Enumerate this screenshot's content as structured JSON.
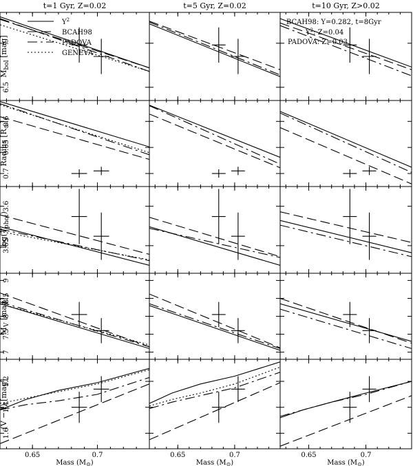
{
  "chart_data": {
    "type": "line",
    "x_axis": {
      "label": "Mass (M",
      "label_sub": "⊙",
      "label_tail": ")",
      "range": [
        0.625,
        0.74
      ],
      "ticks": [
        0.65,
        0.7
      ],
      "tick_labels": [
        "0.65",
        "0.7"
      ]
    },
    "legend": {
      "entries": [
        {
          "name": "Y",
          "sup": "2",
          "style": "solid"
        },
        {
          "name": "BCAH98",
          "sup": "",
          "style": "dashed"
        },
        {
          "name": "PADOVA",
          "sup": "",
          "style": "dashdot"
        },
        {
          "name": "GENEVA",
          "sup": "",
          "style": "dotted"
        }
      ]
    },
    "model_notes": [
      {
        "text": "BCAH98: Y=0.282, t=8Gyr",
        "sup": ""
      },
      {
        "text": "Y",
        "sup": "2",
        "tail": ": Z=0.04"
      },
      {
        "text": "PADOVA: Z=0.03",
        "sup": ""
      }
    ],
    "columns": [
      {
        "title": "t=1 Gyr, Z=0.02"
      },
      {
        "title": "t=5 Gyr, Z=0.02"
      },
      {
        "title": "t=10 Gyr, Z>0.02"
      }
    ],
    "rows": [
      {
        "key": "mbol",
        "ylabel": "M",
        "ylabel_sub": "bol",
        "ylabel_tail": " [mag]",
        "ylim": [
          7.35,
          6.35
        ],
        "ticks": [
          6.5,
          7
        ],
        "tick_labels": [
          "6.5",
          "7"
        ],
        "observations": [
          {
            "x": 0.686,
            "y": 6.98,
            "xerr": 0.006,
            "yerr": 0.2
          },
          {
            "x": 0.703,
            "y": 6.85,
            "xerr": 0.006,
            "yerr": 0.2
          }
        ],
        "panels": [
          {
            "series": [
              {
                "model": "Y2",
                "x": [
                  0.625,
                  0.74
                ],
                "y": [
                  7.3,
                  6.72
                ]
              },
              {
                "model": "BCAH98",
                "x": [
                  0.625,
                  0.74
                ],
                "y": [
                  7.27,
                  6.72
                ]
              },
              {
                "model": "PADOVA",
                "x": [
                  0.625,
                  0.74
                ],
                "y": [
                  7.28,
                  6.68
                ]
              },
              {
                "model": "GENEVA",
                "x": [
                  0.625,
                  0.74
                ],
                "y": [
                  7.21,
                  6.68
                ]
              }
            ]
          },
          {
            "series": [
              {
                "model": "Y2",
                "x": [
                  0.625,
                  0.74
                ],
                "y": [
                  7.22,
                  6.62
                ]
              },
              {
                "model": "BCAH98",
                "x": [
                  0.625,
                  0.74
                ],
                "y": [
                  7.25,
                  6.7
                ]
              },
              {
                "model": "PADOVA",
                "x": [
                  0.625,
                  0.74
                ],
                "y": [
                  7.24,
                  6.64
                ]
              }
            ]
          },
          {
            "series": [
              {
                "model": "Y2",
                "x": [
                  0.625,
                  0.74
                ],
                "y": [
                  7.28,
                  6.73
                ]
              },
              {
                "model": "BCAH98",
                "x": [
                  0.625,
                  0.74
                ],
                "y": [
                  7.23,
                  6.7
                ]
              },
              {
                "model": "PADOVA",
                "x": [
                  0.625,
                  0.74
                ],
                "y": [
                  7.2,
                  6.63
                ]
              }
            ]
          }
        ]
      },
      {
        "key": "radius",
        "ylabel": "Radius [R",
        "ylabel_sub": "⊙",
        "ylabel_tail": "]",
        "ylim": [
          0.56,
          0.725
        ],
        "ticks": [
          0.6,
          0.65,
          0.7
        ],
        "tick_labels": [
          "0.6",
          "0.65",
          "0.7"
        ],
        "observations": [
          {
            "x": 0.686,
            "y": 0.7,
            "xerr": 0.006,
            "yerr": 0.008
          },
          {
            "x": 0.703,
            "y": 0.695,
            "xerr": 0.006,
            "yerr": 0.008
          }
        ],
        "panels": [
          {
            "series": [
              {
                "model": "Y2",
                "x": [
                  0.625,
                  0.74
                ],
                "y": [
                  0.562,
                  0.649
                ]
              },
              {
                "model": "BCAH98",
                "x": [
                  0.625,
                  0.74
                ],
                "y": [
                  0.591,
                  0.673
                ]
              },
              {
                "model": "PADOVA",
                "x": [
                  0.625,
                  0.74
                ],
                "y": [
                  0.566,
                  0.664
                ]
              },
              {
                "model": "GENEVA",
                "x": [
                  0.625,
                  0.74
                ],
                "y": [
                  0.568,
                  0.66
                ]
              }
            ]
          },
          {
            "series": [
              {
                "model": "Y2",
                "x": [
                  0.625,
                  0.74
                ],
                "y": [
                  0.569,
                  0.669
                ]
              },
              {
                "model": "BCAH98",
                "x": [
                  0.625,
                  0.74
                ],
                "y": [
                  0.586,
                  0.689
                ]
              },
              {
                "model": "PADOVA",
                "x": [
                  0.625,
                  0.74
                ],
                "y": [
                  0.57,
                  0.682
                ]
              }
            ]
          },
          {
            "series": [
              {
                "model": "Y2",
                "x": [
                  0.625,
                  0.74
                ],
                "y": [
                  0.581,
                  0.688
                ]
              },
              {
                "model": "BCAH98",
                "x": [
                  0.625,
                  0.74
                ],
                "y": [
                  0.612,
                  0.72
                ]
              },
              {
                "model": "PADOVA",
                "x": [
                  0.625,
                  0.74
                ],
                "y": [
                  0.584,
                  0.698
                ]
              }
            ]
          }
        ]
      },
      {
        "key": "teff",
        "ylabel": "log(T",
        "ylabel_sub": "phot",
        "ylabel_tail": ")",
        "ylim": [
          3.575,
          3.685
        ],
        "ticks": [
          3.6,
          3.65
        ],
        "tick_labels": [
          "3.6",
          "3.65"
        ],
        "observations": [
          {
            "x": 0.686,
            "y": 3.613,
            "xerr": 0.006,
            "yerr": 0.035
          },
          {
            "x": 0.703,
            "y": 3.638,
            "xerr": 0.006,
            "yerr": 0.03
          }
        ],
        "panels": [
          {
            "series": [
              {
                "model": "Y2",
                "x": [
                  0.625,
                  0.74
                ],
                "y": [
                  3.626,
                  3.675
                ]
              },
              {
                "model": "BCAH98",
                "x": [
                  0.625,
                  0.74
                ],
                "y": [
                  3.611,
                  3.661
                ]
              },
              {
                "model": "PADOVA",
                "x": [
                  0.625,
                  0.74
                ],
                "y": [
                  3.629,
                  3.669
                ]
              },
              {
                "model": "GENEVA",
                "x": [
                  0.625,
                  0.74
                ],
                "y": [
                  3.632,
                  3.668
                ]
              }
            ]
          },
          {
            "series": [
              {
                "model": "Y2",
                "x": [
                  0.625,
                  0.74
                ],
                "y": [
                  3.626,
                  3.675
                ]
              },
              {
                "model": "BCAH98",
                "x": [
                  0.625,
                  0.74
                ],
                "y": [
                  3.614,
                  3.664
                ]
              },
              {
                "model": "PADOVA",
                "x": [
                  0.625,
                  0.74
                ],
                "y": [
                  3.628,
                  3.665
                ]
              }
            ]
          },
          {
            "series": [
              {
                "model": "Y2",
                "x": [
                  0.625,
                  0.74
                ],
                "y": [
                  3.618,
                  3.659
                ]
              },
              {
                "model": "BCAH98",
                "x": [
                  0.625,
                  0.74
                ],
                "y": [
                  3.607,
                  3.646
                ]
              },
              {
                "model": "PADOVA",
                "x": [
                  0.625,
                  0.74
                ],
                "y": [
                  3.624,
                  3.664
                ]
              }
            ]
          }
        ]
      },
      {
        "key": "mv",
        "ylabel": "M",
        "ylabel_sub": "V",
        "ylabel_tail": " [mag]",
        "ylim": [
          9.2,
          6.8
        ],
        "ticks": [
          7,
          7.5,
          8,
          8.5,
          9
        ],
        "tick_labels": [
          "7",
          "7.5",
          "8",
          "8.5",
          "9"
        ],
        "observations": [
          {
            "x": 0.686,
            "y": 8.05,
            "xerr": 0.006,
            "yerr": 0.35
          },
          {
            "x": 0.703,
            "y": 7.6,
            "xerr": 0.006,
            "yerr": 0.35
          }
        ],
        "panels": [
          {
            "series": [
              {
                "model": "Y2",
                "x": [
                  0.625,
                  0.74
                ],
                "y": [
                  8.35,
                  7.1
                ]
              },
              {
                "model": "BCAH98",
                "x": [
                  0.625,
                  0.74
                ],
                "y": [
                  8.65,
                  7.15
                ]
              },
              {
                "model": "PADOVA",
                "x": [
                  0.625,
                  0.74
                ],
                "y": [
                  8.4,
                  7.15
                ]
              },
              {
                "model": "GENEVA",
                "x": [
                  0.625,
                  0.74
                ],
                "y": [
                  8.35,
                  7.2
                ]
              }
            ]
          },
          {
            "series": [
              {
                "model": "Y2",
                "x": [
                  0.625,
                  0.74
                ],
                "y": [
                  8.3,
                  7.05
                ]
              },
              {
                "model": "BCAH98",
                "x": [
                  0.625,
                  0.74
                ],
                "y": [
                  8.62,
                  7.12
                ]
              },
              {
                "model": "PADOVA",
                "x": [
                  0.625,
                  0.74
                ],
                "y": [
                  8.35,
                  7.1
                ]
              }
            ]
          },
          {
            "series": [
              {
                "model": "Y2",
                "x": [
                  0.625,
                  0.74
                ],
                "y": [
                  8.35,
                  7.3
                ]
              },
              {
                "model": "BCAH98",
                "x": [
                  0.625,
                  0.74
                ],
                "y": [
                  8.5,
                  7.25
                ]
              },
              {
                "model": "PADOVA",
                "x": [
                  0.625,
                  0.74
                ],
                "y": [
                  8.2,
                  7.1
                ]
              }
            ]
          }
        ]
      },
      {
        "key": "vi",
        "ylabel": "(V − I) [mag]",
        "ylabel_sub": "",
        "ylabel_tail": "",
        "ylim": [
          1.03,
          1.72
        ],
        "ticks": [
          1.2,
          1.4,
          1.6
        ],
        "tick_labels": [
          "1.2",
          "1.4",
          "1.6"
        ],
        "observations": [
          {
            "x": 0.686,
            "y": 1.4,
            "xerr": 0.006,
            "yerr": 0.12
          },
          {
            "x": 0.703,
            "y": 1.26,
            "xerr": 0.006,
            "yerr": 0.1
          }
        ],
        "panels": [
          {
            "series": [
              {
                "model": "Y2",
                "x": [
                  0.625,
                  0.645,
                  0.67,
                  0.7,
                  0.74
                ],
                "y": [
                  1.42,
                  1.34,
                  1.27,
                  1.21,
                  1.1
                ]
              },
              {
                "model": "BCAH98",
                "x": [
                  0.625,
                  0.74
                ],
                "y": [
                  1.68,
                  1.22
                ]
              },
              {
                "model": "PADOVA",
                "x": [
                  0.625,
                  0.645,
                  0.67,
                  0.7,
                  0.74
                ],
                "y": [
                  1.42,
                  1.38,
                  1.35,
                  1.3,
                  1.17
                ]
              },
              {
                "model": "GENEVA",
                "x": [
                  0.625,
                  0.645,
                  0.67,
                  0.7,
                  0.74
                ],
                "y": [
                  1.37,
                  1.33,
                  1.28,
                  1.22,
                  1.11
                ]
              }
            ]
          },
          {
            "series": [
              {
                "model": "Y2",
                "x": [
                  0.625,
                  0.645,
                  0.67,
                  0.7,
                  0.74
                ],
                "y": [
                  1.37,
                  1.29,
                  1.22,
                  1.16,
                  1.05
                ]
              },
              {
                "model": "BCAH98",
                "x": [
                  0.625,
                  0.74
                ],
                "y": [
                  1.65,
                  1.21
                ]
              },
              {
                "model": "PADOVA",
                "x": [
                  0.625,
                  0.645,
                  0.67,
                  0.7,
                  0.74
                ],
                "y": [
                  1.41,
                  1.36,
                  1.31,
                  1.25,
                  1.13
                ]
              },
              {
                "model": "GENEVA",
                "x": [
                  0.625,
                  0.645,
                  0.67,
                  0.7,
                  0.74
                ],
                "y": [
                  1.39,
                  1.34,
                  1.29,
                  1.22,
                  1.09
                ]
              }
            ]
          },
          {
            "series": [
              {
                "model": "Y2",
                "x": [
                  0.625,
                  0.645,
                  0.67,
                  0.7,
                  0.74
                ],
                "y": [
                  1.48,
                  1.42,
                  1.36,
                  1.29,
                  1.2
                ]
              },
              {
                "model": "BCAH98",
                "x": [
                  0.625,
                  0.74
                ],
                "y": [
                  1.7,
                  1.31
                ]
              },
              {
                "model": "PADOVA",
                "x": [
                  0.625,
                  0.645,
                  0.67,
                  0.7,
                  0.74
                ],
                "y": [
                  1.47,
                  1.42,
                  1.36,
                  1.3,
                  1.2
                ]
              }
            ]
          }
        ]
      }
    ]
  }
}
